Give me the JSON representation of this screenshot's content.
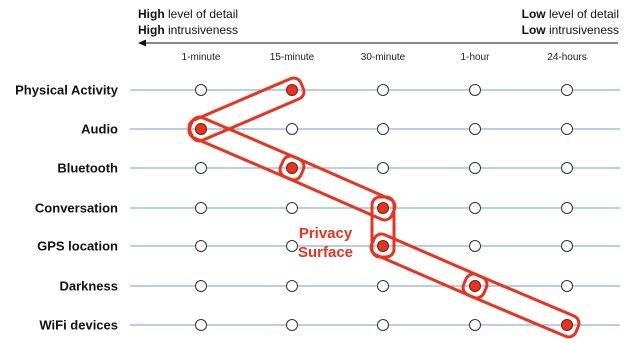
{
  "header": {
    "left": {
      "line1_bold": "High",
      "line1_rest": " level of detail",
      "line2_bold": "High",
      "line2_rest": " intrusiveness"
    },
    "right": {
      "line1_bold": "Low",
      "line1_rest": " level of detail",
      "line2_bold": "Low",
      "line2_rest": " intrusiveness"
    }
  },
  "columns": [
    "1-minute",
    "15-minute",
    "30-minute",
    "1-hour",
    "24-hours"
  ],
  "rows": [
    "Physical Activity",
    "Audio",
    "Bluetooth",
    "Conversation",
    "GPS location",
    "Darkness",
    "WiFi devices"
  ],
  "selected_column_per_row": [
    1,
    0,
    1,
    2,
    2,
    3,
    4
  ],
  "privacy_label": {
    "line1": "Privacy",
    "line2": "Surface"
  },
  "colors": {
    "line": "#6f9fd8",
    "highlight": "#e8331e",
    "filled_dot": "#e8331e",
    "empty_dot_stroke": "#333333"
  }
}
